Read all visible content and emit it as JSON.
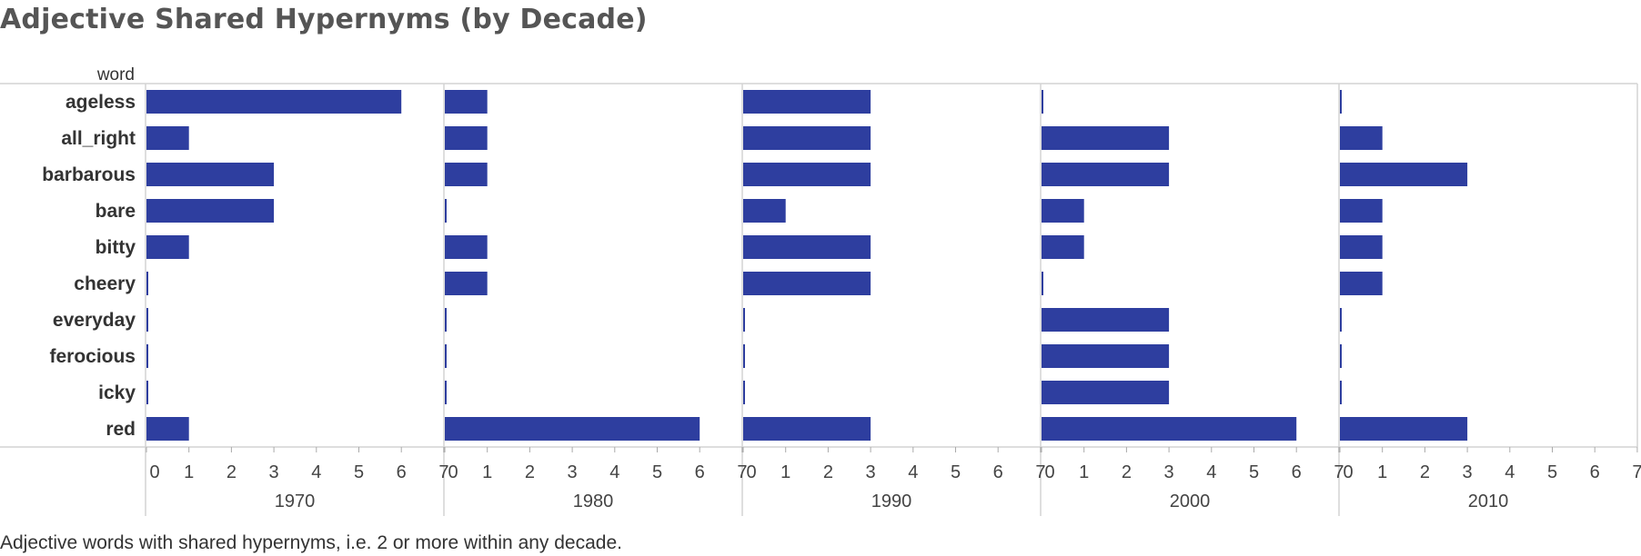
{
  "title": "Adjective Shared Hypernyms (by Decade)",
  "caption": "Adjective words with shared hypernyms, i.e. 2 or more within any decade.",
  "chart_data": {
    "type": "bar",
    "orientation": "horizontal",
    "row_field_label": "word",
    "categories": [
      "ageless",
      "all_right",
      "barbarous",
      "bare",
      "bitty",
      "cheery",
      "everyday",
      "ferocious",
      "icky",
      "red"
    ],
    "panels": [
      {
        "name": "1970",
        "values": [
          6,
          1,
          3,
          3,
          1,
          0,
          0,
          0,
          0,
          1
        ]
      },
      {
        "name": "1980",
        "values": [
          1,
          1,
          1,
          0,
          1,
          1,
          0,
          0,
          0,
          6
        ]
      },
      {
        "name": "1990",
        "values": [
          3,
          3,
          3,
          1,
          3,
          3,
          0,
          0,
          0,
          3
        ]
      },
      {
        "name": "2000",
        "values": [
          0,
          3,
          3,
          1,
          1,
          0,
          3,
          3,
          3,
          6
        ]
      },
      {
        "name": "2010",
        "values": [
          0,
          1,
          3,
          1,
          1,
          1,
          0,
          0,
          0,
          3
        ]
      }
    ],
    "xlim": [
      0,
      7
    ],
    "xticks": [
      0,
      1,
      2,
      3,
      4,
      5,
      6,
      7
    ],
    "bar_color": "#2e3e9f",
    "grid": false
  }
}
